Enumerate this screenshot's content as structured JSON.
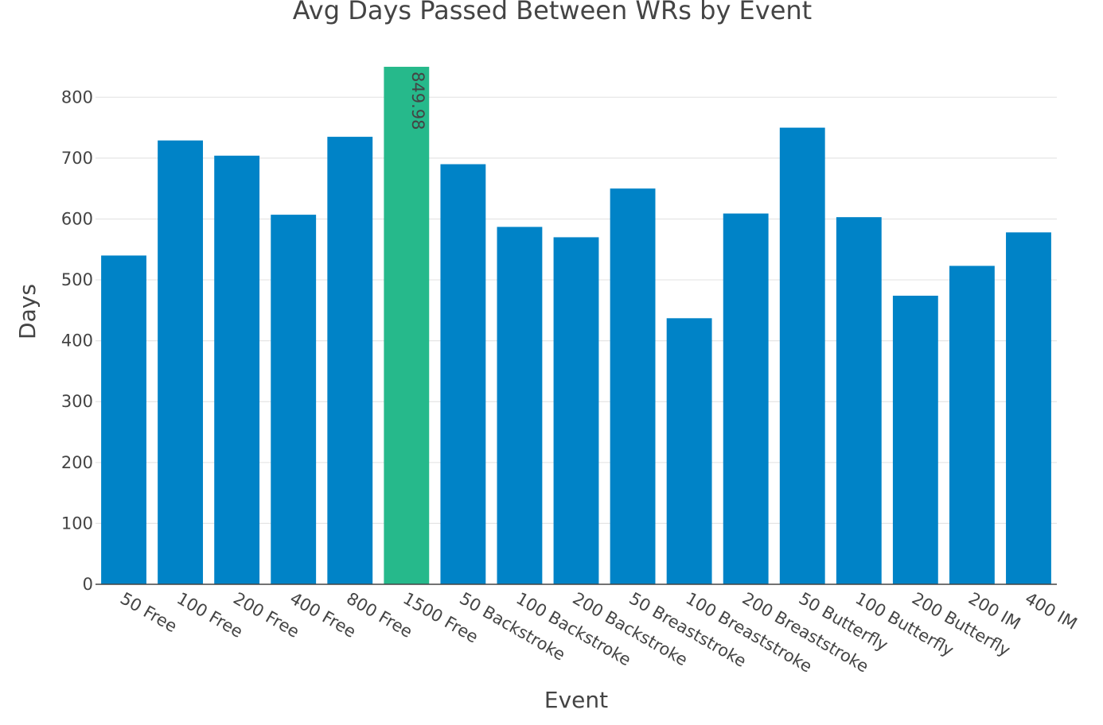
{
  "chart_data": {
    "type": "bar",
    "title": "Avg Days Passed Between WRs by Event",
    "xlabel": "Event",
    "ylabel": "Days",
    "ylim": [
      0,
      850
    ],
    "yticks": [
      0,
      100,
      200,
      300,
      400,
      500,
      600,
      700,
      800
    ],
    "grid": true,
    "categories": [
      "50 Free",
      "100 Free",
      "200 Free",
      "400 Free",
      "800 Free",
      "1500 Free",
      "50 Backstroke",
      "100 Backstroke",
      "200 Backstroke",
      "50 Breaststroke",
      "100 Breaststroke",
      "200 Breaststroke",
      "50 Butterfly",
      "100 Butterfly",
      "200 Butterfly",
      "200 IM",
      "400 IM"
    ],
    "values": [
      540,
      729,
      704,
      607,
      735,
      849.98,
      690,
      587,
      570,
      650,
      437,
      609,
      750,
      603,
      474,
      523,
      578
    ],
    "highlight": {
      "category": "1500 Free",
      "value_label": "849.98",
      "color": "#26b98b"
    },
    "bar_color": "#0083c7"
  }
}
